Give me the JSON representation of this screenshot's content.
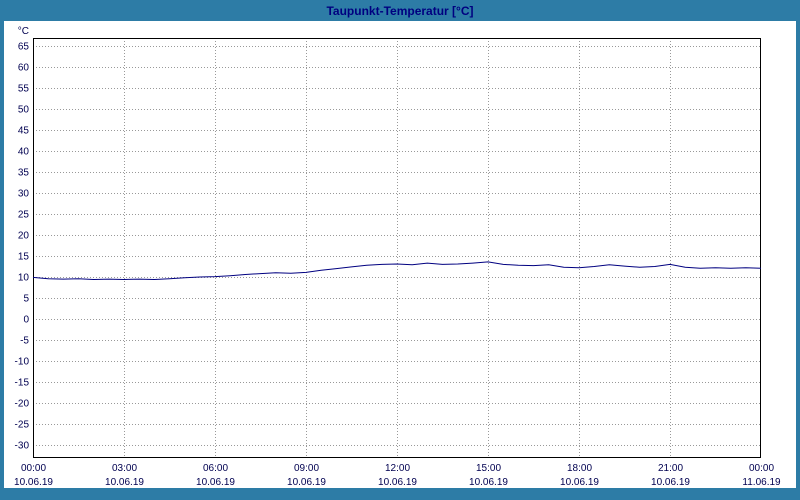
{
  "window": {
    "title": "Taupunkt-Temperatur [°C]"
  },
  "colors": {
    "frame": "#2d7ca6",
    "title_text": "#000080",
    "plot_bg": "#ffffff",
    "plot_border": "#000000",
    "grid": "#999999",
    "line": "#000080",
    "tick_text": "#000050"
  },
  "chart_data": {
    "type": "line",
    "title": "Taupunkt-Temperatur [°C]",
    "ylabel": "°C",
    "ylim": [
      -33,
      67
    ],
    "ytick_min": -30,
    "ytick_max": 65,
    "ytick_step": 5,
    "grid": true,
    "legend": "none",
    "xlim_hours": [
      0,
      24
    ],
    "xticks": [
      {
        "hour": 0,
        "time": "00:00",
        "date": "10.06.19"
      },
      {
        "hour": 3,
        "time": "03:00",
        "date": "10.06.19"
      },
      {
        "hour": 6,
        "time": "06:00",
        "date": "10.06.19"
      },
      {
        "hour": 9,
        "time": "09:00",
        "date": "10.06.19"
      },
      {
        "hour": 12,
        "time": "12:00",
        "date": "10.06.19"
      },
      {
        "hour": 15,
        "time": "15:00",
        "date": "10.06.19"
      },
      {
        "hour": 18,
        "time": "18:00",
        "date": "10.06.19"
      },
      {
        "hour": 21,
        "time": "21:00",
        "date": "10.06.19"
      },
      {
        "hour": 24,
        "time": "00:00",
        "date": "11.06.19"
      }
    ],
    "series": [
      {
        "name": "Taupunkt-Temperatur",
        "x_hours": [
          0,
          0.5,
          1,
          1.5,
          2,
          2.5,
          3,
          3.5,
          4,
          4.5,
          5,
          5.5,
          6,
          6.5,
          7,
          7.5,
          8,
          8.5,
          9,
          9.5,
          10,
          10.5,
          11,
          11.5,
          12,
          12.5,
          13,
          13.5,
          14,
          14.5,
          15,
          15.5,
          16,
          16.5,
          17,
          17.5,
          18,
          18.5,
          19,
          19.5,
          20,
          20.5,
          21,
          21.5,
          22,
          22.5,
          23,
          23.5,
          24
        ],
        "values": [
          10.0,
          9.7,
          9.6,
          9.7,
          9.5,
          9.6,
          9.5,
          9.6,
          9.5,
          9.7,
          9.9,
          10.1,
          10.2,
          10.4,
          10.7,
          10.9,
          11.1,
          11.0,
          11.2,
          11.7,
          12.1,
          12.5,
          12.9,
          13.1,
          13.2,
          13.0,
          13.4,
          13.1,
          13.2,
          13.4,
          13.7,
          13.1,
          12.9,
          12.8,
          13.0,
          12.4,
          12.3,
          12.6,
          13.0,
          12.7,
          12.4,
          12.6,
          13.1,
          12.4,
          12.2,
          12.3,
          12.2,
          12.3,
          12.2
        ]
      }
    ]
  }
}
